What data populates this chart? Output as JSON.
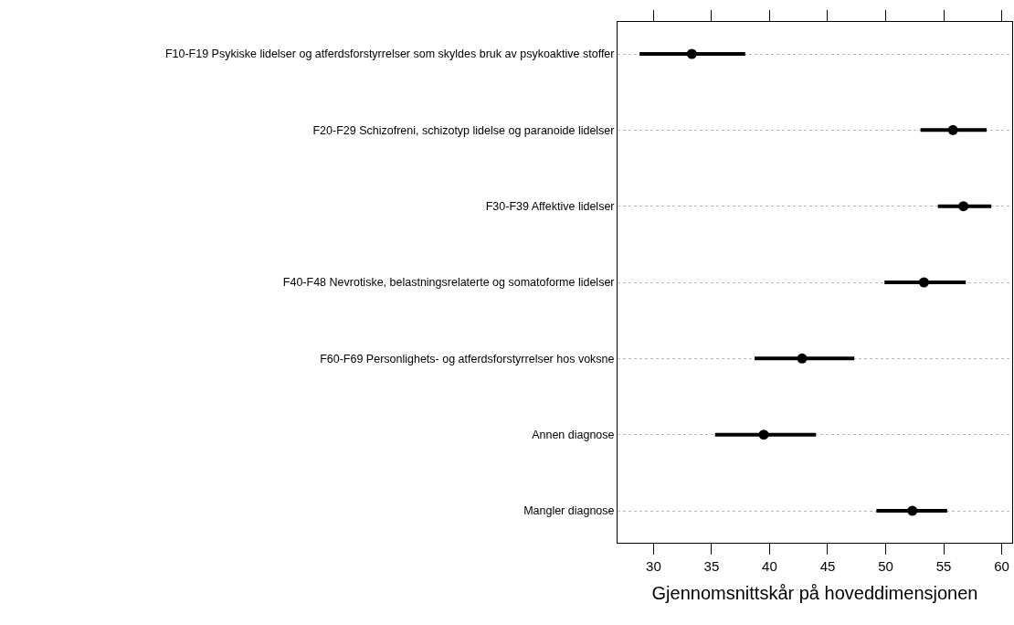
{
  "chart_data": {
    "type": "scatter",
    "xlabel": "Gjennomsnittskår på hoveddimensjonen",
    "categories": [
      "F10-F19 Psykiske lidelser og atferdsforstyrrelser som skyldes bruk av psykoaktive stoffer",
      "F20-F29 Schizofreni, schizotyp lidelse og paranoide lidelser",
      "F30-F39 Affektive lidelser",
      "F40-F48 Nevrotiske, belastningsrelaterte og somatoforme lidelser",
      "F60-F69 Personlighets- og atferdsforstyrrelser hos voksne",
      "Annen diagnose",
      "Mangler diagnose"
    ],
    "values": [
      33.3,
      55.8,
      56.7,
      53.3,
      42.8,
      39.5,
      52.3
    ],
    "errors": [
      [
        28.8,
        37.9
      ],
      [
        53.0,
        58.7
      ],
      [
        54.5,
        59.1
      ],
      [
        49.9,
        56.9
      ],
      [
        38.7,
        47.3
      ],
      [
        35.3,
        44.0
      ],
      [
        49.2,
        55.3
      ]
    ],
    "color": "#000000",
    "orientation": "horizontal",
    "xlim": [
      26.9,
      60.9
    ],
    "xticks": [
      30,
      35,
      40,
      45,
      50,
      55,
      60
    ],
    "grid": "y",
    "marker": "circle"
  }
}
